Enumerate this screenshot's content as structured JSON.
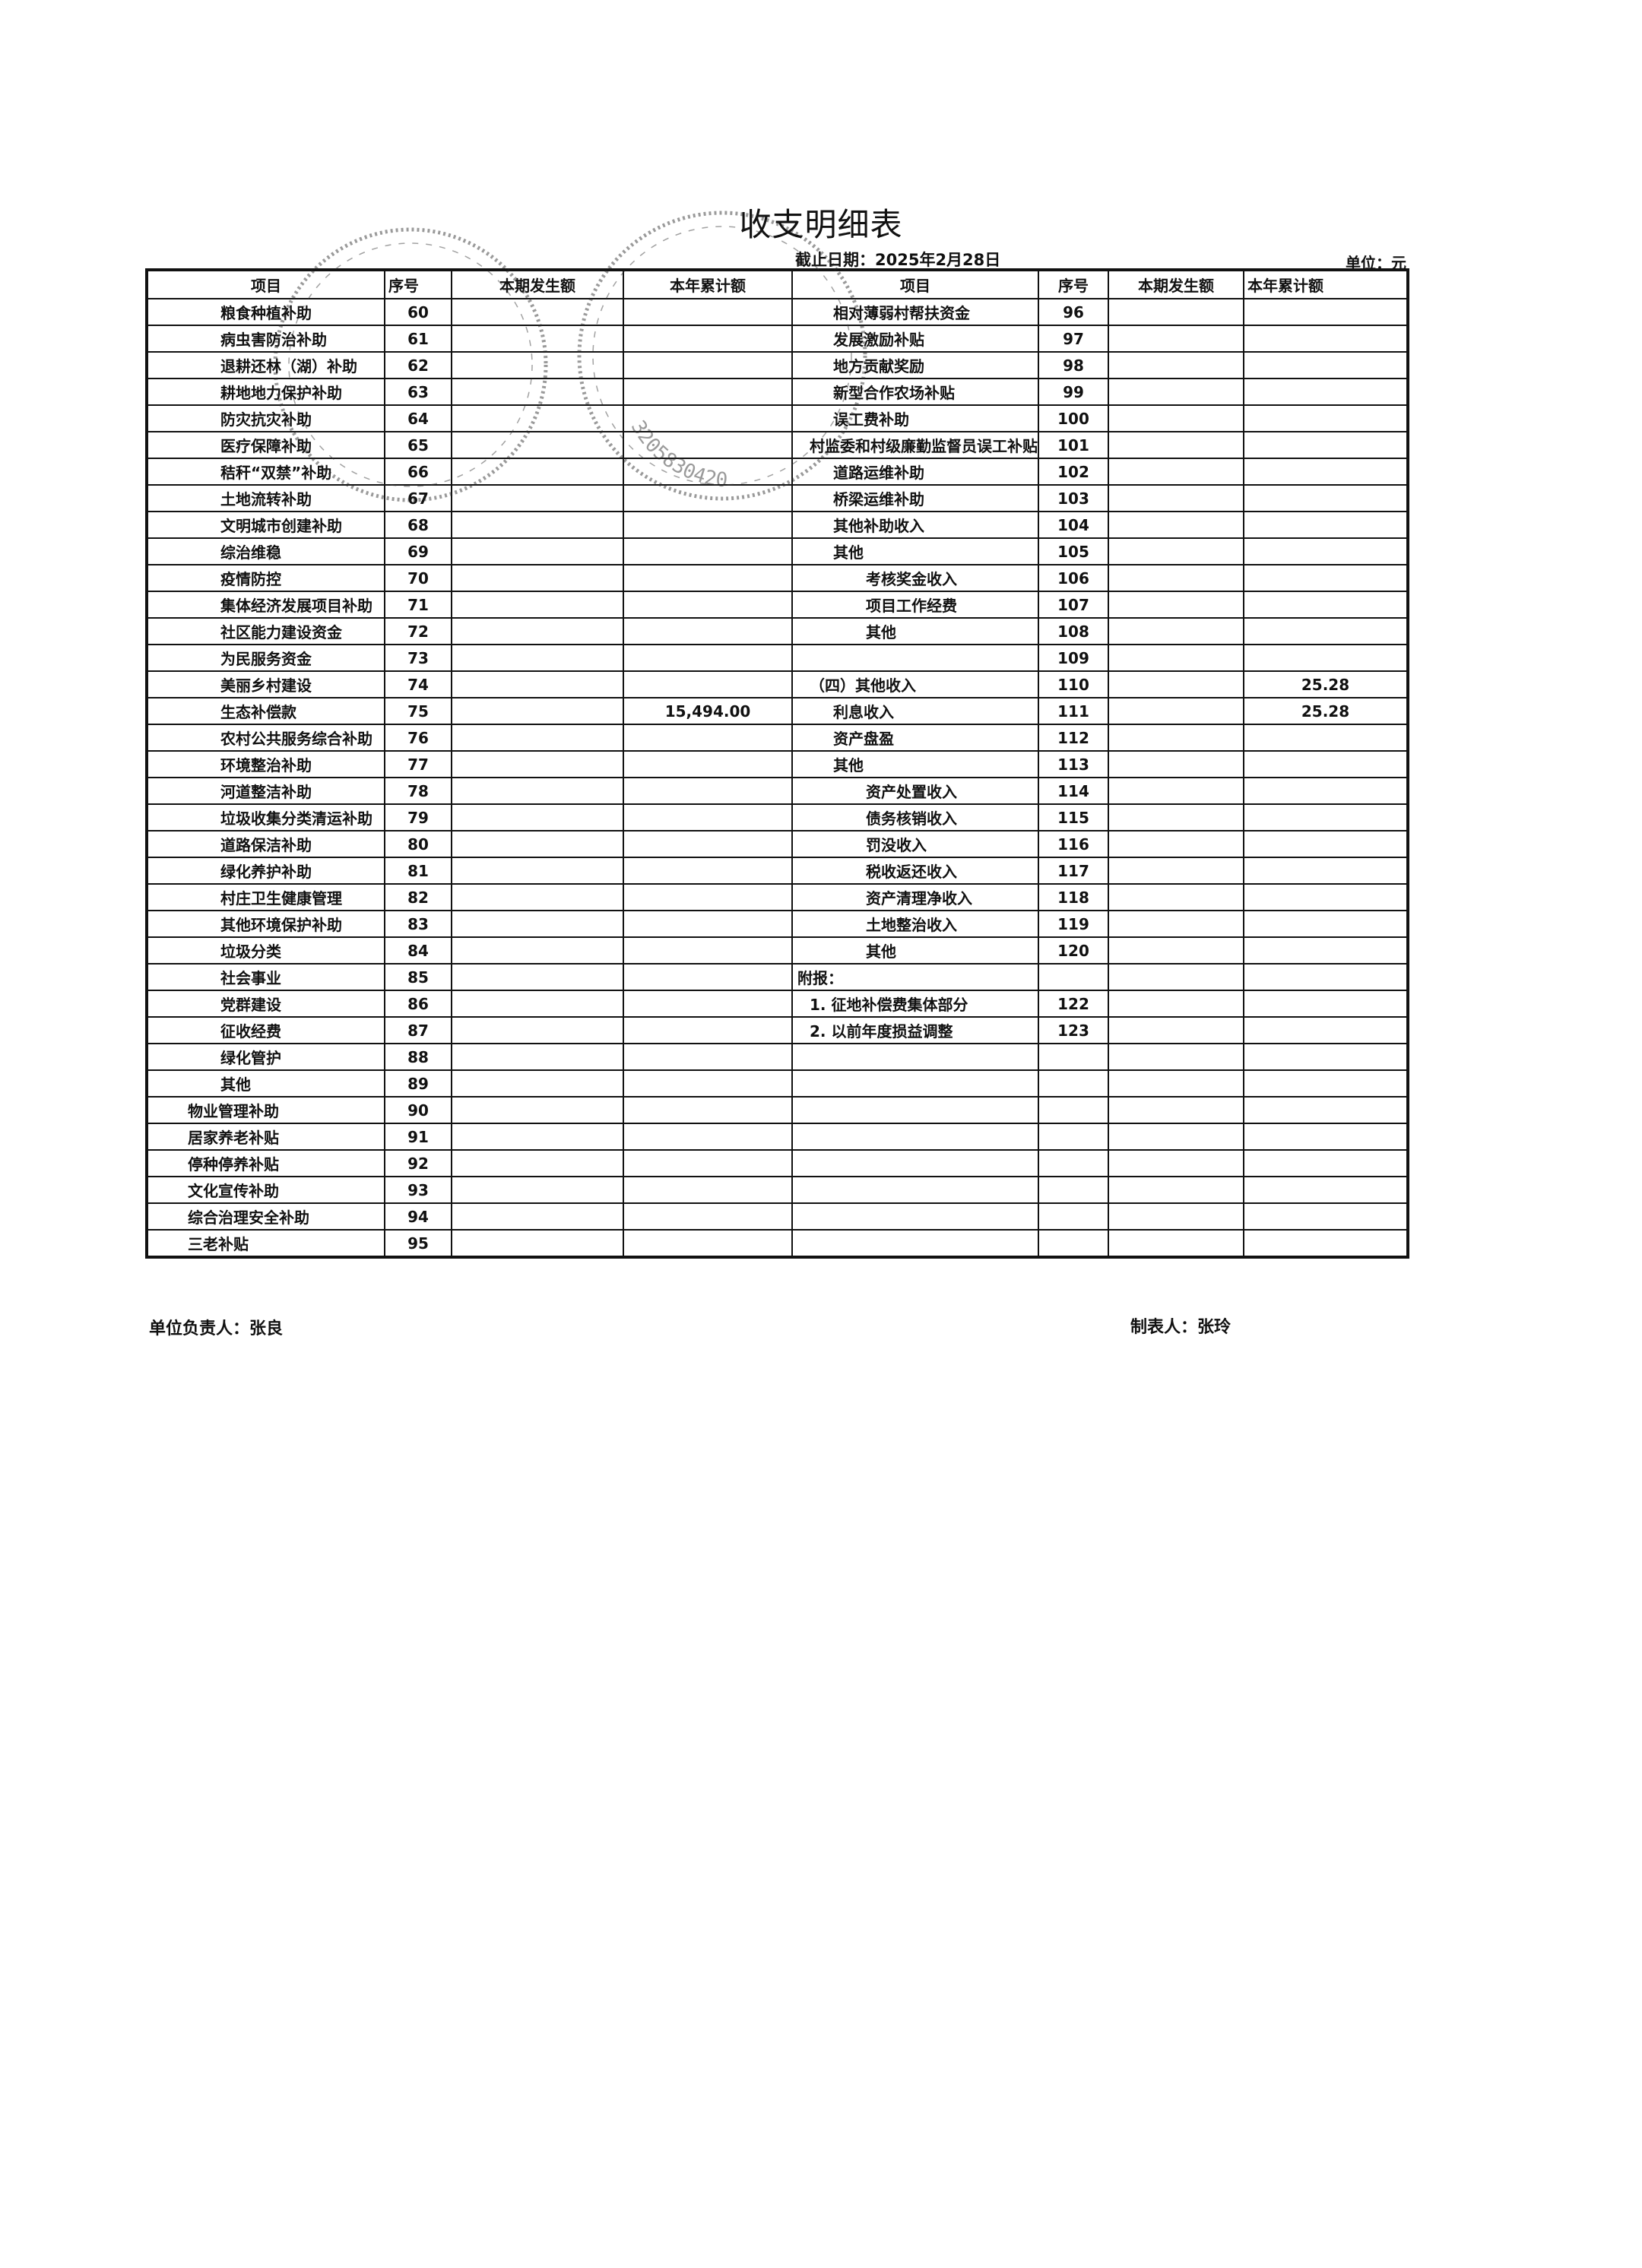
{
  "header": {
    "title": "收支明细表",
    "date": "截止日期：2025年2月28日",
    "unit": "单位：元"
  },
  "columns": {
    "item": "项目",
    "no": "序号",
    "current": "本期发生额",
    "ytd": "本年累计额"
  },
  "left_rows": [
    {
      "item": "粮食种植补助",
      "no": "60",
      "current": "",
      "ytd": "",
      "level": 2
    },
    {
      "item": "病虫害防治补助",
      "no": "61",
      "current": "",
      "ytd": "",
      "level": 2
    },
    {
      "item": "退耕还林（湖）补助",
      "no": "62",
      "current": "",
      "ytd": "",
      "level": 2
    },
    {
      "item": "耕地地力保护补助",
      "no": "63",
      "current": "",
      "ytd": "",
      "level": 2
    },
    {
      "item": "防灾抗灾补助",
      "no": "64",
      "current": "",
      "ytd": "",
      "level": 2
    },
    {
      "item": "医疗保障补助",
      "no": "65",
      "current": "",
      "ytd": "",
      "level": 2
    },
    {
      "item": "秸秆“双禁”补助",
      "no": "66",
      "current": "",
      "ytd": "",
      "level": 2
    },
    {
      "item": "土地流转补助",
      "no": "67",
      "current": "",
      "ytd": "",
      "level": 2
    },
    {
      "item": "文明城市创建补助",
      "no": "68",
      "current": "",
      "ytd": "",
      "level": 2
    },
    {
      "item": "综治维稳",
      "no": "69",
      "current": "",
      "ytd": "",
      "level": 2
    },
    {
      "item": "疫情防控",
      "no": "70",
      "current": "",
      "ytd": "",
      "level": 2
    },
    {
      "item": "集体经济发展项目补助",
      "no": "71",
      "current": "",
      "ytd": "",
      "level": 2
    },
    {
      "item": "社区能力建设资金",
      "no": "72",
      "current": "",
      "ytd": "",
      "level": 2
    },
    {
      "item": "为民服务资金",
      "no": "73",
      "current": "",
      "ytd": "",
      "level": 2
    },
    {
      "item": "美丽乡村建设",
      "no": "74",
      "current": "",
      "ytd": "",
      "level": 2
    },
    {
      "item": "生态补偿款",
      "no": "75",
      "current": "",
      "ytd": "15,494.00",
      "level": 2
    },
    {
      "item": "农村公共服务综合补助",
      "no": "76",
      "current": "",
      "ytd": "",
      "level": 2
    },
    {
      "item": "环境整治补助",
      "no": "77",
      "current": "",
      "ytd": "",
      "level": 2
    },
    {
      "item": "河道整洁补助",
      "no": "78",
      "current": "",
      "ytd": "",
      "level": 2
    },
    {
      "item": "垃圾收集分类清运补助",
      "no": "79",
      "current": "",
      "ytd": "",
      "level": 2
    },
    {
      "item": "道路保洁补助",
      "no": "80",
      "current": "",
      "ytd": "",
      "level": 2
    },
    {
      "item": "绿化养护补助",
      "no": "81",
      "current": "",
      "ytd": "",
      "level": 2
    },
    {
      "item": "村庄卫生健康管理",
      "no": "82",
      "current": "",
      "ytd": "",
      "level": 2
    },
    {
      "item": "其他环境保护补助",
      "no": "83",
      "current": "",
      "ytd": "",
      "level": 2
    },
    {
      "item": "垃圾分类",
      "no": "84",
      "current": "",
      "ytd": "",
      "level": 2
    },
    {
      "item": "社会事业",
      "no": "85",
      "current": "",
      "ytd": "",
      "level": 2
    },
    {
      "item": "党群建设",
      "no": "86",
      "current": "",
      "ytd": "",
      "level": 2
    },
    {
      "item": "征收经费",
      "no": "87",
      "current": "",
      "ytd": "",
      "level": 2
    },
    {
      "item": "绿化管护",
      "no": "88",
      "current": "",
      "ytd": "",
      "level": 2
    },
    {
      "item": "其他",
      "no": "89",
      "current": "",
      "ytd": "",
      "level": 2
    },
    {
      "item": "物业管理补助",
      "no": "90",
      "current": "",
      "ytd": "",
      "level": 1
    },
    {
      "item": "居家养老补贴",
      "no": "91",
      "current": "",
      "ytd": "",
      "level": 1
    },
    {
      "item": "停种停养补贴",
      "no": "92",
      "current": "",
      "ytd": "",
      "level": 1
    },
    {
      "item": "文化宣传补助",
      "no": "93",
      "current": "",
      "ytd": "",
      "level": 1
    },
    {
      "item": "综合治理安全补助",
      "no": "94",
      "current": "",
      "ytd": "",
      "level": 1
    },
    {
      "item": "三老补贴",
      "no": "95",
      "current": "",
      "ytd": "",
      "level": 1
    }
  ],
  "right_rows": [
    {
      "item": "相对薄弱村帮扶资金",
      "no": "96",
      "current": "",
      "ytd": "",
      "level": 2
    },
    {
      "item": "发展激励补贴",
      "no": "97",
      "current": "",
      "ytd": "",
      "level": 2
    },
    {
      "item": "地方贡献奖励",
      "no": "98",
      "current": "",
      "ytd": "",
      "level": 2
    },
    {
      "item": "新型合作农场补贴",
      "no": "99",
      "current": "",
      "ytd": "",
      "level": 2
    },
    {
      "item": "误工费补助",
      "no": "100",
      "current": "",
      "ytd": "",
      "level": 2
    },
    {
      "item": "村监委和村级廉勤监督员误工补贴",
      "no": "101",
      "current": "",
      "ytd": "",
      "level": 1
    },
    {
      "item": "道路运维补助",
      "no": "102",
      "current": "",
      "ytd": "",
      "level": 2
    },
    {
      "item": "桥梁运维补助",
      "no": "103",
      "current": "",
      "ytd": "",
      "level": 2
    },
    {
      "item": "其他补助收入",
      "no": "104",
      "current": "",
      "ytd": "",
      "level": 2
    },
    {
      "item": "其他",
      "no": "105",
      "current": "",
      "ytd": "",
      "level": 2
    },
    {
      "item": "考核奖金收入",
      "no": "106",
      "current": "",
      "ytd": "",
      "level": 3
    },
    {
      "item": "项目工作经费",
      "no": "107",
      "current": "",
      "ytd": "",
      "level": 3
    },
    {
      "item": "其他",
      "no": "108",
      "current": "",
      "ytd": "",
      "level": 3
    },
    {
      "item": "",
      "no": "109",
      "current": "",
      "ytd": "",
      "level": 3
    },
    {
      "item": "（四）其他收入",
      "no": "110",
      "current": "",
      "ytd": "25.28",
      "level": 1
    },
    {
      "item": "利息收入",
      "no": "111",
      "current": "",
      "ytd": "25.28",
      "level": 2
    },
    {
      "item": "资产盘盈",
      "no": "112",
      "current": "",
      "ytd": "",
      "level": 2
    },
    {
      "item": "其他",
      "no": "113",
      "current": "",
      "ytd": "",
      "level": 2
    },
    {
      "item": "资产处置收入",
      "no": "114",
      "current": "",
      "ytd": "",
      "level": 3
    },
    {
      "item": "债务核销收入",
      "no": "115",
      "current": "",
      "ytd": "",
      "level": 3
    },
    {
      "item": "罚没收入",
      "no": "116",
      "current": "",
      "ytd": "",
      "level": 3
    },
    {
      "item": "税收返还收入",
      "no": "117",
      "current": "",
      "ytd": "",
      "level": 3
    },
    {
      "item": "资产清理净收入",
      "no": "118",
      "current": "",
      "ytd": "",
      "level": 3
    },
    {
      "item": "土地整治收入",
      "no": "119",
      "current": "",
      "ytd": "",
      "level": 3
    },
    {
      "item": "其他",
      "no": "120",
      "current": "",
      "ytd": "",
      "level": 3
    },
    {
      "item": "附报：",
      "no": "",
      "current": "",
      "ytd": "",
      "level": 0
    },
    {
      "item": "1. 征地补偿费集体部分",
      "no": "122",
      "current": "",
      "ytd": "",
      "level": 1
    },
    {
      "item": "2. 以前年度损益调整",
      "no": "123",
      "current": "",
      "ytd": "",
      "level": 1
    },
    {
      "item": "",
      "no": "",
      "current": "",
      "ytd": "",
      "level": 0
    },
    {
      "item": "",
      "no": "",
      "current": "",
      "ytd": "",
      "level": 0
    },
    {
      "item": "",
      "no": "",
      "current": "",
      "ytd": "",
      "level": 0
    },
    {
      "item": "",
      "no": "",
      "current": "",
      "ytd": "",
      "level": 0
    },
    {
      "item": "",
      "no": "",
      "current": "",
      "ytd": "",
      "level": 0
    },
    {
      "item": "",
      "no": "",
      "current": "",
      "ytd": "",
      "level": 0
    },
    {
      "item": "",
      "no": "",
      "current": "",
      "ytd": "",
      "level": 0
    },
    {
      "item": "",
      "no": "",
      "current": "",
      "ytd": "",
      "level": 0
    }
  ],
  "footer": {
    "responsible": "单位负责人：张良",
    "preparer": "制表人：张玲"
  },
  "seals": {
    "code": "3205830420"
  }
}
